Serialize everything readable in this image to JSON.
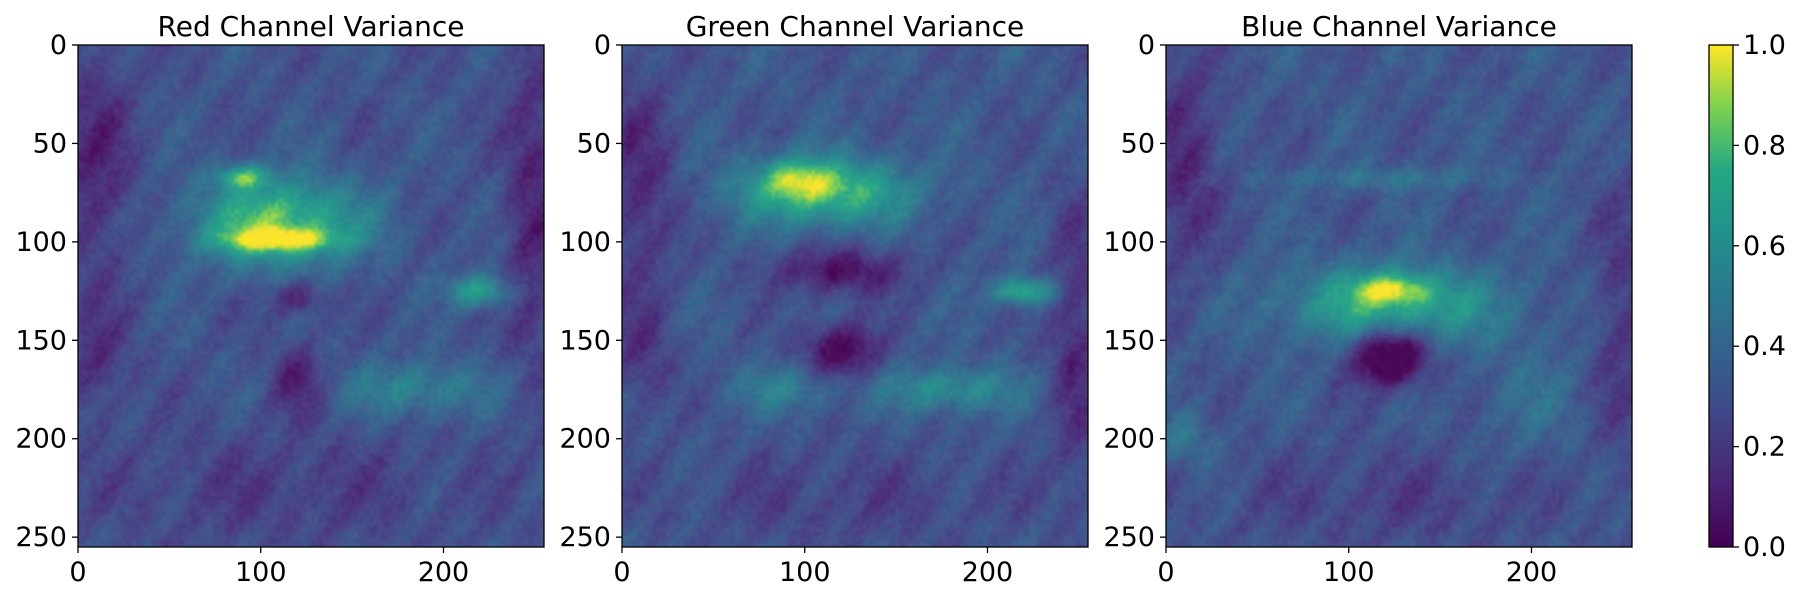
{
  "chart_data": {
    "type": "heatmap",
    "colormap": "viridis",
    "grid": false,
    "x_range": [
      0,
      255
    ],
    "y_range": [
      0,
      255
    ],
    "y_inverted": true,
    "x_ticks": [
      "0",
      "100",
      "200"
    ],
    "y_ticks": [
      "0",
      "50",
      "100",
      "150",
      "200",
      "250"
    ],
    "panels": [
      {
        "title": "Red Channel Variance",
        "background": 0.3,
        "blobs": [
          {
            "x": 110,
            "y": 90,
            "sx": 32,
            "sy": 16,
            "value": 0.55
          },
          {
            "x": 110,
            "y": 99,
            "sx": 22,
            "sy": 4,
            "value": 0.45
          },
          {
            "x": 90,
            "y": 67,
            "sx": 10,
            "sy": 4,
            "value": 0.4
          },
          {
            "x": 120,
            "y": 128,
            "sx": 10,
            "sy": 6,
            "value": -0.25
          },
          {
            "x": 120,
            "y": 170,
            "sx": 10,
            "sy": 12,
            "value": -0.2
          },
          {
            "x": 220,
            "y": 125,
            "sx": 12,
            "sy": 6,
            "value": 0.4
          },
          {
            "x": 185,
            "y": 175,
            "sx": 28,
            "sy": 10,
            "value": 0.25
          },
          {
            "x": 10,
            "y": 60,
            "sx": 14,
            "sy": 40,
            "value": -0.2
          },
          {
            "x": 248,
            "y": 80,
            "sx": 10,
            "sy": 60,
            "value": -0.2
          },
          {
            "x": 10,
            "y": 160,
            "sx": 12,
            "sy": 20,
            "value": -0.15
          },
          {
            "x": 110,
            "y": 225,
            "sx": 70,
            "sy": 20,
            "value": -0.1
          }
        ]
      },
      {
        "title": "Green Channel Variance",
        "background": 0.32,
        "blobs": [
          {
            "x": 110,
            "y": 74,
            "sx": 32,
            "sy": 12,
            "value": 0.55
          },
          {
            "x": 95,
            "y": 68,
            "sx": 12,
            "sy": 6,
            "value": 0.25
          },
          {
            "x": 120,
            "y": 115,
            "sx": 24,
            "sy": 8,
            "value": -0.3
          },
          {
            "x": 120,
            "y": 155,
            "sx": 14,
            "sy": 10,
            "value": -0.35
          },
          {
            "x": 220,
            "y": 125,
            "sx": 12,
            "sy": 5,
            "value": 0.45
          },
          {
            "x": 180,
            "y": 175,
            "sx": 25,
            "sy": 8,
            "value": 0.3
          },
          {
            "x": 90,
            "y": 175,
            "sx": 20,
            "sy": 8,
            "value": 0.2
          },
          {
            "x": 10,
            "y": 70,
            "sx": 14,
            "sy": 40,
            "value": -0.2
          },
          {
            "x": 248,
            "y": 150,
            "sx": 10,
            "sy": 50,
            "value": -0.2
          },
          {
            "x": 10,
            "y": 160,
            "sx": 12,
            "sy": 20,
            "value": -0.15
          },
          {
            "x": 120,
            "y": 230,
            "sx": 70,
            "sy": 18,
            "value": -0.1
          }
        ]
      },
      {
        "title": "Blue Channel Variance",
        "background": 0.32,
        "blobs": [
          {
            "x": 123,
            "y": 132,
            "sx": 40,
            "sy": 14,
            "value": 0.45
          },
          {
            "x": 123,
            "y": 124,
            "sx": 14,
            "sy": 5,
            "value": 0.35
          },
          {
            "x": 123,
            "y": 158,
            "sx": 14,
            "sy": 10,
            "value": -0.6
          },
          {
            "x": 120,
            "y": 68,
            "sx": 40,
            "sy": 4,
            "value": 0.15
          },
          {
            "x": 10,
            "y": 60,
            "sx": 14,
            "sy": 40,
            "value": -0.2
          },
          {
            "x": 248,
            "y": 140,
            "sx": 10,
            "sy": 50,
            "value": -0.15
          },
          {
            "x": 200,
            "y": 180,
            "sx": 20,
            "sy": 20,
            "value": 0.1
          },
          {
            "x": 10,
            "y": 200,
            "sx": 10,
            "sy": 10,
            "value": 0.15
          },
          {
            "x": 120,
            "y": 230,
            "sx": 70,
            "sy": 18,
            "value": -0.1
          }
        ]
      }
    ],
    "colorbar": {
      "range": [
        0.0,
        1.0
      ],
      "ticks": [
        "0.0",
        "0.2",
        "0.4",
        "0.6",
        "0.8",
        "1.0"
      ]
    }
  }
}
